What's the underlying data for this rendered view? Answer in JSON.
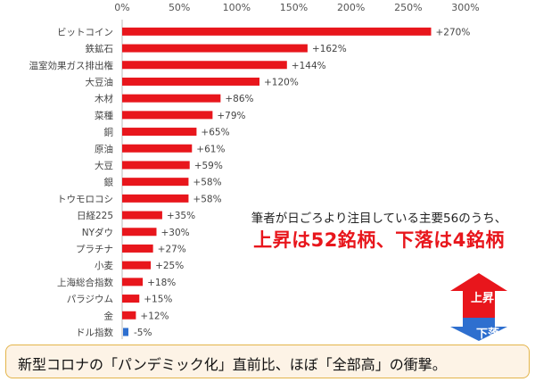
{
  "chart_data": {
    "type": "bar",
    "orientation": "horizontal",
    "xlim": [
      -5,
      300
    ],
    "x_ticks": [
      0,
      50,
      100,
      150,
      200,
      250,
      300
    ],
    "x_tick_labels": [
      "0%",
      "50%",
      "100%",
      "150%",
      "200%",
      "250%",
      "300%"
    ],
    "categories": [
      "ビットコイン",
      "鉄鉱石",
      "温室効果ガス排出権",
      "大豆油",
      "木材",
      "菜種",
      "銅",
      "原油",
      "大豆",
      "銀",
      "トウモロコシ",
      "日経225",
      "NYダウ",
      "プラチナ",
      "小麦",
      "上海総合指数",
      "パラジウム",
      "金",
      "ドル指数"
    ],
    "values": [
      270,
      162,
      144,
      120,
      86,
      79,
      65,
      61,
      59,
      58,
      58,
      35,
      30,
      27,
      25,
      18,
      15,
      12,
      -5
    ],
    "value_labels": [
      "+270%",
      "+162%",
      "+144%",
      "+120%",
      "+86%",
      "+79%",
      "+65%",
      "+61%",
      "+59%",
      "+58%",
      "+58%",
      "+35%",
      "+30%",
      "+27%",
      "+25%",
      "+18%",
      "+15%",
      "+12%",
      "-5%"
    ],
    "colors": {
      "positive": "#e8161c",
      "negative": "#2e6fcf"
    },
    "grid": false
  },
  "annotation": {
    "line1": "筆者が日ごろより注目している主要56のうち、",
    "line2": "上昇は52銘柄、下落は4銘柄"
  },
  "arrows": {
    "up_label": "上昇",
    "down_label": "下落",
    "up_color": "#e8161c",
    "down_color": "#2e6fcf"
  },
  "footer": "新型コロナの「パンデミック化」直前比、ほぼ「全部高」の衝撃。"
}
